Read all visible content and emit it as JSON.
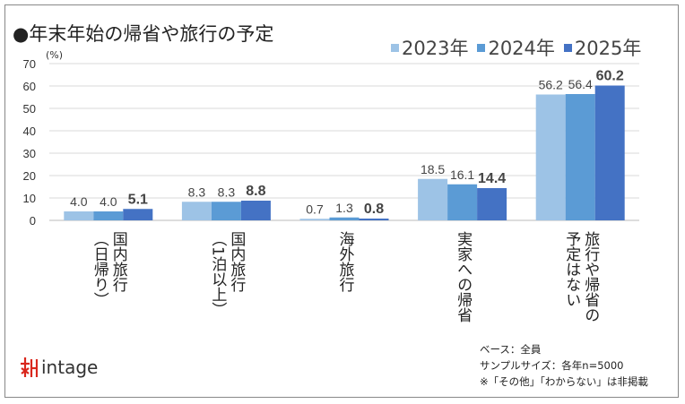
{
  "chart_data": {
    "type": "bar",
    "title": "●年末年始の帰省や旅行の予定",
    "ylabel": "(%)",
    "ylim": [
      0,
      70
    ],
    "yticks": [
      0,
      10,
      20,
      30,
      40,
      50,
      60,
      70
    ],
    "grid": true,
    "legend_position": "top-right",
    "categories": [
      "国内旅行\n（日帰り）",
      "国内旅行\n（1泊以上）",
      "海外旅行",
      "実家への帰省",
      "旅行や帰省の\n予定はない"
    ],
    "series": [
      {
        "name": "2023年",
        "color": "#9dc3e6",
        "values": [
          4.0,
          8.3,
          0.7,
          18.5,
          56.2
        ]
      },
      {
        "name": "2024年",
        "color": "#5b9bd5",
        "values": [
          4.0,
          8.3,
          1.3,
          16.1,
          56.4
        ]
      },
      {
        "name": "2025年",
        "color": "#4472c4",
        "values": [
          5.1,
          8.8,
          0.8,
          14.4,
          60.2
        ]
      }
    ]
  },
  "notes": [
    "ベース：全員",
    "サンプルサイズ：各年n=5000",
    "※「その他」「わからない」は非掲載"
  ],
  "logo": "intage"
}
